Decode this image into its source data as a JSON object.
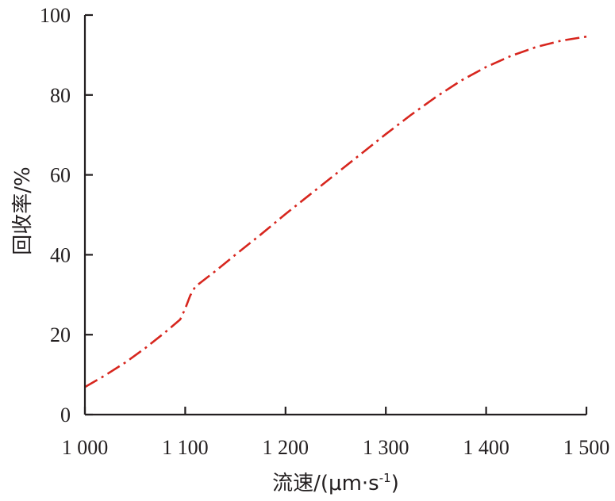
{
  "chart_data": {
    "type": "line",
    "xlabel": "流速/(μm·s",
    "xlabel_sup": "-1",
    "xlabel_close": ")",
    "ylabel": "回收率/%",
    "xlim": [
      1000,
      1500
    ],
    "ylim": [
      0,
      100
    ],
    "x_ticks": [
      1000,
      1100,
      1200,
      1300,
      1400,
      1500
    ],
    "x_tick_labels": [
      "1 000",
      "1 100",
      "1 200",
      "1 300",
      "1 400",
      "1 500"
    ],
    "y_ticks": [
      0,
      20,
      40,
      60,
      80,
      100
    ],
    "y_tick_labels": [
      "0",
      "20",
      "40",
      "60",
      "80",
      "100"
    ],
    "grid": false,
    "series": [
      {
        "color": "#d7261e",
        "line_style": "dash-dot",
        "x": [
          1000,
          1020,
          1040,
          1060,
          1080,
          1095,
          1100,
          1105,
          1110,
          1130,
          1150,
          1175,
          1200,
          1225,
          1250,
          1275,
          1300,
          1325,
          1350,
          1375,
          1400,
          1425,
          1450,
          1475,
          1500
        ],
        "y": [
          6.9,
          9.8,
          13.0,
          16.6,
          20.6,
          23.8,
          26.5,
          29.8,
          32.0,
          35.9,
          40.0,
          45.0,
          50.2,
          55.2,
          60.2,
          65.2,
          70.2,
          75.0,
          79.5,
          83.6,
          87.0,
          89.8,
          92.0,
          93.6,
          94.6
        ]
      }
    ]
  }
}
